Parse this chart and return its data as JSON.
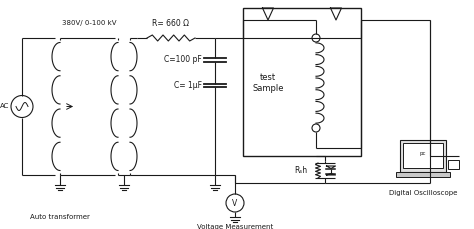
{
  "bg_color": "#ffffff",
  "line_color": "#1a1a1a",
  "labels": {
    "ac": "AC",
    "auto_transformer": "Auto transformer",
    "voltage_label": "380V/ 0-100 kV",
    "R_label": "R= 660 Ω",
    "C1_label": "C=100 pF",
    "C2_label": "C= 1μF",
    "test_sample": "test\nSample",
    "Rsh_label": "Rₛh",
    "voltage_meas": "Voltage Measurement",
    "digital_osc": "Digital Oscilloscope"
  }
}
